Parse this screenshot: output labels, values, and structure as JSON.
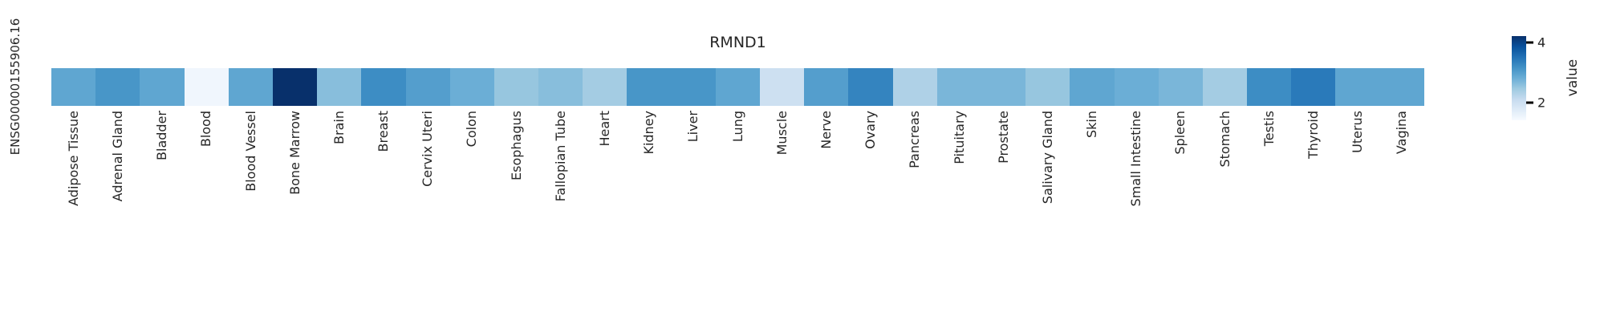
{
  "chart_data": {
    "type": "heatmap",
    "title": "RMND1",
    "rows": [
      "ENSG00000155906.16"
    ],
    "columns": [
      "Adipose Tissue",
      "Adrenal Gland",
      "Bladder",
      "Blood",
      "Blood Vessel",
      "Bone Marrow",
      "Brain",
      "Breast",
      "Cervix Uteri",
      "Colon",
      "Esophagus",
      "Fallopian Tube",
      "Heart",
      "Kidney",
      "Liver",
      "Lung",
      "Muscle",
      "Nerve",
      "Ovary",
      "Pancreas",
      "Pituitary",
      "Prostate",
      "Salivary Gland",
      "Skin",
      "Small Intestine",
      "Spleen",
      "Stomach",
      "Testis",
      "Thyroid",
      "Uterus",
      "Vagina"
    ],
    "values": [
      [
        2.9,
        3.1,
        2.9,
        1.5,
        2.9,
        4.2,
        2.6,
        3.2,
        3.0,
        2.8,
        2.5,
        2.6,
        2.4,
        3.1,
        3.1,
        2.9,
        2.0,
        3.0,
        3.3,
        2.3,
        2.7,
        2.7,
        2.5,
        2.9,
        2.8,
        2.7,
        2.4,
        3.2,
        3.4,
        2.9,
        2.9
      ]
    ],
    "vmin": 1.4,
    "vmax": 4.2,
    "colormap": "Blues",
    "colormap_stops": [
      "#f7fbff",
      "#deebf7",
      "#c6dbef",
      "#9ecae1",
      "#6baed6",
      "#4292c6",
      "#2171b5",
      "#08519c",
      "#08306b"
    ],
    "legend_label": "value",
    "legend_ticks": [
      4,
      2
    ],
    "legend_position": "right",
    "grid": false,
    "x_tick_rotation": 90
  }
}
